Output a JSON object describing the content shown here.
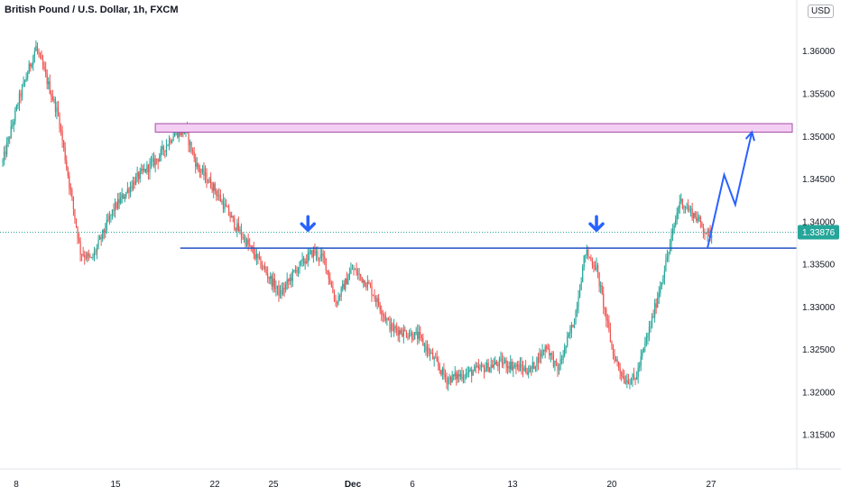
{
  "chart_data": {
    "type": "candlestick",
    "title": "British Pound / U.S. Dollar, 1h, FXCM",
    "currency": "USD",
    "current_price": "1.33876",
    "x_ticks": [
      "8",
      "15",
      "22",
      "25",
      "Dec",
      "6",
      "13",
      "20",
      "27"
    ],
    "y_ticks": [
      "1.36000",
      "1.35500",
      "1.35000",
      "1.34500",
      "1.34000",
      "1.33500",
      "1.33000",
      "1.32500",
      "1.32000",
      "1.31500"
    ],
    "ylim": [
      1.311,
      1.366
    ],
    "price_path": [
      [
        0,
        1.347
      ],
      [
        3,
        1.3545
      ],
      [
        6,
        1.3605
      ],
      [
        10,
        1.3525
      ],
      [
        14,
        1.3365
      ],
      [
        16,
        1.3355
      ],
      [
        20,
        1.3415
      ],
      [
        24,
        1.345
      ],
      [
        28,
        1.3475
      ],
      [
        31,
        1.3505
      ],
      [
        33,
        1.3505
      ],
      [
        35,
        1.3465
      ],
      [
        38,
        1.344
      ],
      [
        42,
        1.3395
      ],
      [
        46,
        1.3355
      ],
      [
        50,
        1.3315
      ],
      [
        53,
        1.3345
      ],
      [
        56,
        1.3365
      ],
      [
        58,
        1.3355
      ],
      [
        60,
        1.3305
      ],
      [
        63,
        1.3345
      ],
      [
        66,
        1.3325
      ],
      [
        70,
        1.3275
      ],
      [
        75,
        1.3265
      ],
      [
        80,
        1.3215
      ],
      [
        85,
        1.3225
      ],
      [
        90,
        1.3235
      ],
      [
        95,
        1.3225
      ],
      [
        98,
        1.3255
      ],
      [
        100,
        1.3225
      ],
      [
        103,
        1.3285
      ],
      [
        105,
        1.3365
      ],
      [
        107,
        1.3345
      ],
      [
        110,
        1.3245
      ],
      [
        112,
        1.3215
      ],
      [
        114,
        1.3215
      ],
      [
        117,
        1.3285
      ],
      [
        120,
        1.3365
      ],
      [
        122,
        1.3425
      ],
      [
        125,
        1.3405
      ],
      [
        127,
        1.3385
      ]
    ],
    "drawings": {
      "supply_zone": [
        1.3505,
        1.3515
      ],
      "support_line": 1.3369,
      "current_line": 1.33876,
      "projection": [
        [
          127,
          1.3369
        ],
        [
          130,
          1.3455
        ],
        [
          132,
          1.342
        ],
        [
          135,
          1.3505
        ]
      ],
      "arrows": [
        [
          55,
          1.3389
        ],
        [
          107,
          1.3389
        ]
      ]
    },
    "colors": {
      "up": "#26a69a",
      "down": "#ef5350",
      "zone_fill": "#f4cff4",
      "zone_stroke": "#a64ca6",
      "support": "#2250c8",
      "projection": "#2962ff",
      "price_label": "#26a69a"
    }
  }
}
